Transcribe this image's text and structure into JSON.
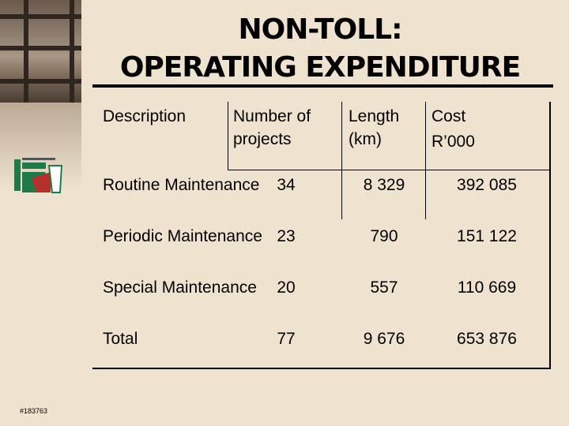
{
  "title": {
    "line1": "NON-TOLL:",
    "line2": "OPERATING EXPENDITURE"
  },
  "table": {
    "headers": {
      "description": "Description",
      "projects": "Number of projects",
      "length": "Length (km)",
      "cost_line1": "Cost",
      "cost_line2": "R’000"
    },
    "rows": [
      {
        "description": "Routine Maintenance",
        "projects": "34",
        "length": "8 329",
        "cost": "392 085"
      },
      {
        "description": "Periodic Maintenance",
        "projects": "23",
        "length": "790",
        "cost": "151 122"
      },
      {
        "description": "Special Maintenance",
        "projects": "20",
        "length": "557",
        "cost": "110 669"
      },
      {
        "description": "Total",
        "projects": "77",
        "length": "9 676",
        "cost": "653 876"
      }
    ]
  },
  "footer": {
    "reference": "#183763"
  },
  "colors": {
    "background": "#efe3cf",
    "text": "#000000",
    "logo_green": "#1f7a4a",
    "logo_red": "#b5302a"
  }
}
